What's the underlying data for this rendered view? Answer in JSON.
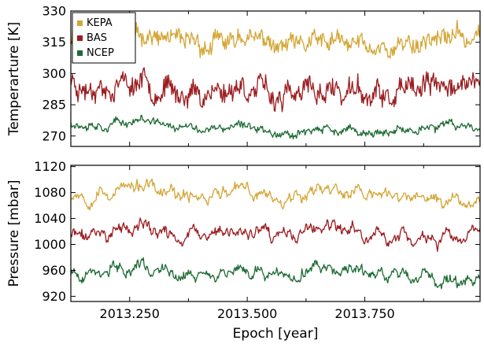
{
  "chart_data": [
    {
      "type": "line",
      "ylabel": "Temperarture [K]",
      "xlim": [
        2013.125,
        2013.995
      ],
      "ylim": [
        265,
        330
      ],
      "yticks": [
        270,
        285,
        300,
        315,
        330
      ],
      "grid": false,
      "legend_position": "top-left",
      "series": [
        {
          "name": "KEPA",
          "color": "#d4a637",
          "mean": 315.5,
          "amplitude": 4.5,
          "noise": 3.2,
          "seed": 11,
          "x": [
            2013.125,
            2013.2,
            2013.275,
            2013.35,
            2013.425,
            2013.5,
            2013.575,
            2013.65,
            2013.725,
            2013.8,
            2013.875,
            2013.95,
            2013.995
          ],
          "values": [
            318,
            317,
            319,
            315,
            313,
            318,
            312,
            315,
            314,
            312,
            316,
            318,
            317
          ]
        },
        {
          "name": "BAS",
          "color": "#9b1c1f",
          "mean": 292,
          "amplitude": 5,
          "noise": 3.8,
          "seed": 23,
          "x": [
            2013.125,
            2013.2,
            2013.275,
            2013.35,
            2013.425,
            2013.5,
            2013.575,
            2013.65,
            2013.725,
            2013.8,
            2013.875,
            2013.95,
            2013.995
          ],
          "values": [
            295,
            293,
            297,
            290,
            291,
            294,
            288,
            292,
            291,
            288,
            293,
            295,
            294
          ]
        },
        {
          "name": "NCEP",
          "color": "#1d6b34",
          "mean": 274.5,
          "amplitude": 1.8,
          "noise": 1.3,
          "seed": 37,
          "x": [
            2013.125,
            2013.2,
            2013.275,
            2013.35,
            2013.425,
            2013.5,
            2013.575,
            2013.65,
            2013.725,
            2013.8,
            2013.875,
            2013.95,
            2013.995
          ],
          "values": [
            276,
            275,
            278,
            274,
            273,
            275,
            271,
            273,
            272,
            271,
            274,
            275,
            274
          ]
        }
      ]
    },
    {
      "type": "line",
      "xlabel": "Epoch [year]",
      "ylabel": "Pressure [mbar]",
      "xlim": [
        2013.125,
        2013.995
      ],
      "ylim": [
        912,
        1122
      ],
      "yticks": [
        920,
        960,
        1000,
        1040,
        1080,
        1120
      ],
      "xticks": [
        2013.25,
        2013.5,
        2013.75
      ],
      "xtick_labels": [
        "2013.250",
        "2013.500",
        "2013.750"
      ],
      "grid": false,
      "series": [
        {
          "name": "KEPA",
          "color": "#d4a637",
          "mean": 1075,
          "amplitude": 13,
          "noise": 4,
          "seed": 53,
          "x": [
            2013.125,
            2013.2,
            2013.275,
            2013.35,
            2013.425,
            2013.5,
            2013.575,
            2013.65,
            2013.725,
            2013.8,
            2013.875,
            2013.95,
            2013.995
          ],
          "values": [
            1075,
            1080,
            1090,
            1072,
            1078,
            1083,
            1070,
            1088,
            1080,
            1075,
            1070,
            1068,
            1072
          ]
        },
        {
          "name": "BAS",
          "color": "#9b1c1f",
          "mean": 1015,
          "amplitude": 13,
          "noise": 4,
          "seed": 71,
          "x": [
            2013.125,
            2013.2,
            2013.275,
            2013.35,
            2013.425,
            2013.5,
            2013.575,
            2013.65,
            2013.725,
            2013.8,
            2013.875,
            2013.95,
            2013.995
          ],
          "values": [
            1012,
            1018,
            1028,
            1010,
            1015,
            1020,
            1008,
            1025,
            1018,
            1012,
            1008,
            1006,
            1010
          ]
        },
        {
          "name": "NCEP",
          "color": "#1d6b34",
          "mean": 955,
          "amplitude": 13,
          "noise": 4,
          "seed": 89,
          "x": [
            2013.125,
            2013.2,
            2013.275,
            2013.35,
            2013.425,
            2013.5,
            2013.575,
            2013.65,
            2013.725,
            2013.8,
            2013.875,
            2013.95,
            2013.995
          ],
          "values": [
            952,
            958,
            970,
            950,
            955,
            960,
            948,
            965,
            958,
            952,
            948,
            946,
            950
          ]
        }
      ]
    }
  ]
}
